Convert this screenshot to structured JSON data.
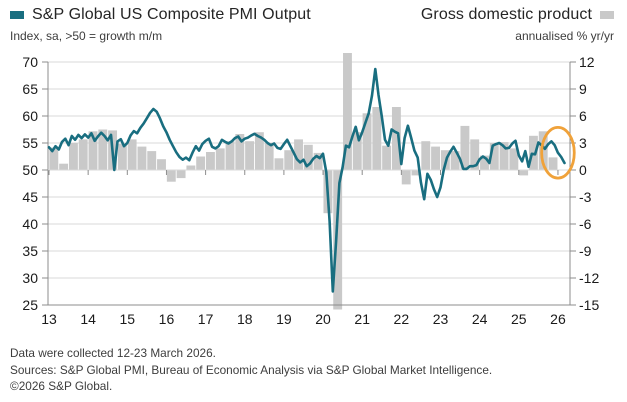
{
  "header": {
    "left": {
      "title": "S&P Global US Composite PMI Output",
      "subtitle": "Index, sa, >50 = growth m/m",
      "color": "#196e80"
    },
    "right": {
      "title": "Gross domestic product",
      "subtitle": "annualised % yr/yr",
      "color": "#c9c9c9"
    }
  },
  "footer": {
    "line1": "Data were collected 12-23 March 2026.",
    "line2": "Sources: S&P Global PMI, Bureau of Economic Analysis via S&P Global Market Intelligence.",
    "line3": "©2026 S&P Global."
  },
  "chart_data": {
    "type": "line+bar",
    "title": "S&P Global US Composite PMI Output vs Gross domestic product",
    "left_axis": {
      "label": "Index, sa, >50 = growth m/m",
      "min": 25,
      "max": 70,
      "tick_step": 5
    },
    "right_axis": {
      "label": "annualised % yr/yr",
      "min": -15,
      "max": 12,
      "tick_step": 3
    },
    "x_axis": {
      "tick_labels": [
        "13",
        "14",
        "15",
        "16",
        "17",
        "18",
        "19",
        "20",
        "21",
        "22",
        "23",
        "24",
        "25",
        "26"
      ],
      "grid": false
    },
    "colors": {
      "pmi_line": "#196e80",
      "gdp_bar": "#c9c9c9",
      "gridline": "#d9d9d9",
      "axis": "#8c8c8c",
      "tick_text": "#1a1a1a",
      "annotation": "#f0a23a"
    },
    "series": [
      {
        "name": "S&P Global US Composite PMI Output",
        "type": "line",
        "axis": "left",
        "color": "#196e80",
        "start": "Jan 2013",
        "step_months": 1,
        "values": [
          54.2,
          53.5,
          54.4,
          53.8,
          55.2,
          55.8,
          54.6,
          56.3,
          55.6,
          56.5,
          55.9,
          56.6,
          56.0,
          56.8,
          55.4,
          56.2,
          56.9,
          56.3,
          55.5,
          56.5,
          50.0,
          55.3,
          55.7,
          54.4,
          55.0,
          56.4,
          57.2,
          56.8,
          57.8,
          58.6,
          59.6,
          60.6,
          61.3,
          60.8,
          59.6,
          58.1,
          57.0,
          55.6,
          54.4,
          53.3,
          52.4,
          51.9,
          52.3,
          51.8,
          53.2,
          54.4,
          53.6,
          54.8,
          55.4,
          55.8,
          54.3,
          54.0,
          54.4,
          55.6,
          55.2,
          54.9,
          55.3,
          55.9,
          56.2,
          55.3,
          55.8,
          56.0,
          56.4,
          56.7,
          56.3,
          56.0,
          55.6,
          55.0,
          54.6,
          54.9,
          54.1,
          53.9,
          54.8,
          55.6,
          54.4,
          53.2,
          52.0,
          51.4,
          51.9,
          50.7,
          51.2,
          52.1,
          52.6,
          52.2,
          53.0,
          49.6,
          40.5,
          27.5,
          36.8,
          47.6,
          50.5,
          54.5,
          54.2,
          56.2,
          58.0,
          55.5,
          57.0,
          58.8,
          60.5,
          63.8,
          68.7,
          63.9,
          59.9,
          55.6,
          54.5,
          57.5,
          57.1,
          56.8,
          51.1,
          55.9,
          58.2,
          56.0,
          53.6,
          52.3,
          47.7,
          44.6,
          49.3,
          48.2,
          46.4,
          45.0,
          46.8,
          50.1,
          52.3,
          53.4,
          54.3,
          53.2,
          52.0,
          50.2,
          50.2,
          50.7,
          50.7,
          50.9,
          52.0,
          52.5,
          52.1,
          51.3,
          54.5,
          54.8,
          55.0,
          54.6,
          54.0,
          54.1,
          54.9,
          55.4,
          52.7,
          51.6,
          53.5,
          50.6,
          53.0,
          52.9,
          55.1,
          54.6,
          53.9,
          54.8,
          55.3,
          54.6,
          53.2,
          52.4,
          51.3
        ]
      },
      {
        "name": "Gross domestic product",
        "type": "bar",
        "axis": "right",
        "color": "#c9c9c9",
        "start": "Q1 2013",
        "step_months": 3,
        "values": [
          2.5,
          0.7,
          3.0,
          3.4,
          4.3,
          4.5,
          4.4,
          2.9,
          3.4,
          2.6,
          2.1,
          1.2,
          -1.3,
          -0.9,
          0.5,
          1.5,
          2.0,
          2.4,
          3.2,
          4.0,
          3.2,
          4.2,
          3.0,
          1.3,
          2.2,
          3.4,
          2.8,
          1.9,
          -4.8,
          -15.5,
          13.0,
          4.2,
          6.3,
          7.0,
          2.7,
          7.0,
          -1.6,
          -0.6,
          3.2,
          2.6,
          2.2,
          2.1,
          4.9,
          3.4,
          1.6,
          3.0,
          3.1,
          2.4,
          -0.6,
          3.8,
          4.3,
          1.4
        ]
      }
    ],
    "annotation": {
      "shape": "ellipse",
      "color": "#f0a23a",
      "x_month": 156,
      "y_pmi": 53.2,
      "rx_months": 5,
      "ry_pmi": 4.7,
      "meaning": "highlights latest PMI decline and last GDP bar"
    }
  }
}
